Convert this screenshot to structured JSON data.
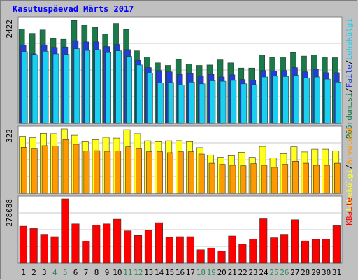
{
  "title": "Kasutuspäevad Märts 2017",
  "chart_data": [
    {
      "type": "bar",
      "panel": "top",
      "max_label": "2422",
      "categories": [
        "1",
        "2",
        "3",
        "4",
        "5",
        "6",
        "7",
        "8",
        "9",
        "10",
        "11",
        "12",
        "13",
        "14",
        "15",
        "16",
        "17",
        "18",
        "19",
        "20",
        "21",
        "22",
        "23",
        "24",
        "25",
        "26",
        "27",
        "28",
        "29",
        "30",
        "31"
      ],
      "weekend_days": [
        "4",
        "5",
        "11",
        "12",
        "18",
        "19",
        "25",
        "26"
      ],
      "ylim": [
        0,
        2422
      ],
      "series": [
        {
          "name": "Pöördumisi",
          "color": "#1a7a4a",
          "values": [
            2200,
            2100,
            2180,
            1980,
            1960,
            2400,
            2290,
            2240,
            2080,
            2330,
            2190,
            1690,
            1550,
            1410,
            1350,
            1490,
            1380,
            1350,
            1360,
            1480,
            1410,
            1290,
            1290,
            1590,
            1540,
            1550,
            1650,
            1570,
            1590,
            1550,
            1530
          ]
        },
        {
          "name": "Faile",
          "color": "#1f3fd8",
          "values": [
            1820,
            1620,
            1830,
            1770,
            1780,
            1930,
            1900,
            1900,
            1790,
            1840,
            1720,
            1470,
            1300,
            1230,
            1200,
            1140,
            1160,
            1110,
            1140,
            1080,
            1130,
            1020,
            1010,
            1230,
            1220,
            1230,
            1300,
            1200,
            1260,
            1180,
            1180
          ]
        },
        {
          "name": "Lehekülgi",
          "color": "#1ad0f0",
          "values": [
            1670,
            1600,
            1680,
            1620,
            1610,
            1740,
            1700,
            1720,
            1650,
            1690,
            1560,
            1360,
            1170,
            940,
            950,
            890,
            960,
            920,
            990,
            980,
            1000,
            920,
            900,
            1080,
            1100,
            1090,
            1120,
            1060,
            1080,
            1030,
            960
          ]
        }
      ]
    },
    {
      "type": "bar",
      "panel": "middle",
      "max_label": "322",
      "ylim": [
        0,
        322
      ],
      "series": [
        {
          "name": "Lehekülgi",
          "color": "#ffff20",
          "values": [
            285,
            278,
            300,
            298,
            322,
            290,
            258,
            268,
            280,
            276,
            318,
            298,
            262,
            258,
            262,
            263,
            258,
            228,
            190,
            180,
            188,
            205,
            180,
            234,
            177,
            198,
            232,
            207,
            220,
            220,
            212
          ]
        },
        {
          "name": "Arvuteid",
          "color": "#ff9900",
          "values": [
            230,
            222,
            238,
            236,
            268,
            245,
            212,
            213,
            210,
            211,
            232,
            222,
            208,
            208,
            203,
            208,
            208,
            196,
            150,
            145,
            140,
            138,
            148,
            140,
            130,
            145,
            160,
            150,
            140,
            140,
            150
          ]
        }
      ]
    },
    {
      "type": "bar",
      "panel": "bottom",
      "max_label": "278088",
      "ylim": [
        0,
        278088
      ],
      "series": [
        {
          "name": "KBaite",
          "color": "#ff0000",
          "values": [
            160000,
            150000,
            125000,
            115000,
            278088,
            170000,
            95000,
            165000,
            170000,
            190000,
            140000,
            120000,
            142000,
            175000,
            112000,
            115000,
            115000,
            58000,
            66000,
            52000,
            118000,
            82000,
            105000,
            192000,
            110000,
            125000,
            188000,
            96000,
            103000,
            103000,
            162000
          ]
        }
      ]
    }
  ],
  "right_labels": {
    "top": [
      "Pöördumisi",
      "/",
      "Faile",
      "/",
      "Lehekülgi"
    ],
    "top_colors": [
      "#1a7a4a",
      "#000000",
      "#1f3fd8",
      "#000000",
      "#1ad0f0"
    ],
    "middle": [
      "Lehekülgi",
      "/",
      "Arvuteid"
    ],
    "middle_colors": [
      "#ffff20",
      "#000000",
      "#ff9900"
    ],
    "bottom": [
      "KBaite"
    ],
    "bottom_colors": [
      "#ff0000"
    ]
  },
  "colors": {
    "weekday_label": "#000000",
    "weekend_label": "#2e8b57",
    "panel_bg": "#ffffff",
    "grid": "#c8c8c8"
  }
}
